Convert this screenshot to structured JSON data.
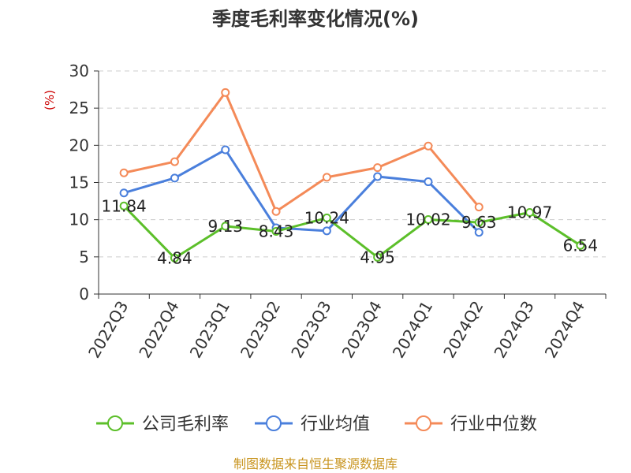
{
  "chart_data": {
    "type": "line",
    "title": "季度毛利率变化情况(%)",
    "ylabel": "(%)",
    "categories": [
      "2022Q3",
      "2022Q4",
      "2023Q1",
      "2023Q2",
      "2023Q3",
      "2023Q4",
      "2024Q1",
      "2024Q2",
      "2024Q3",
      "2024Q4"
    ],
    "ylim": [
      0,
      30
    ],
    "yticks": [
      0,
      5,
      10,
      15,
      20,
      25,
      30
    ],
    "grid": true,
    "legend_position": "bottom",
    "series": [
      {
        "name": "公司毛利率",
        "color": "#5cbf2a",
        "values": [
          11.84,
          4.84,
          9.13,
          8.43,
          10.24,
          4.95,
          10.02,
          9.63,
          10.97,
          6.54
        ],
        "labels": [
          "11.84",
          "4.84",
          "9.13",
          "8.43",
          "10.24",
          "4.95",
          "10.02",
          "9.63",
          "10.97",
          "6.54"
        ]
      },
      {
        "name": "行业均值",
        "color": "#4a7fdc",
        "values": [
          13.6,
          15.6,
          19.4,
          8.9,
          8.5,
          15.8,
          15.1,
          8.3,
          null,
          null
        ]
      },
      {
        "name": "行业中位数",
        "color": "#f48a58",
        "values": [
          16.3,
          17.8,
          27.1,
          11.1,
          15.7,
          17.0,
          19.9,
          11.7,
          null,
          null
        ]
      }
    ]
  },
  "source": "制图数据来自恒生聚源数据库"
}
